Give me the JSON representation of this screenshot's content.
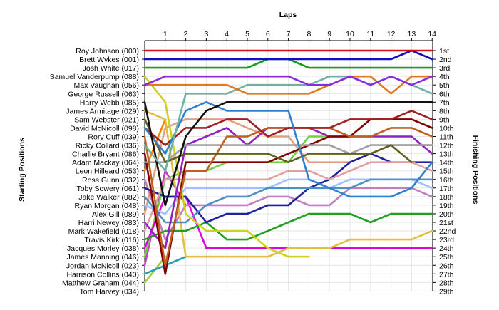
{
  "chart_data": {
    "type": "line",
    "title": "Laps",
    "ylabel_left": "Starting Positions",
    "ylabel_right": "Finishing Positions",
    "x_ticks": [
      "1",
      "2",
      "3",
      "4",
      "5",
      "6",
      "7",
      "8",
      "9",
      "10",
      "11",
      "12",
      "13",
      "14"
    ],
    "start_labels": [
      "Roy Johnson (000)",
      "Brett Wykes (001)",
      "Josh White (017)",
      "Samuel Vanderpump (088)",
      "Max Vaughan (056)",
      "George Russell (063)",
      "Harry Webb (085)",
      "James Armitage (029)",
      "Sam Webster (021)",
      "David McNicoll (098)",
      "Rory Cuff (039)",
      "Ricky Collard (036)",
      "Charlie Bryant (086)",
      "Adam Mackay (064)",
      "Leon Hilleard (053)",
      "Ross Gunn (032)",
      "Toby Sowery (061)",
      "Jake Walker (082)",
      "Ryan Morgan (048)",
      "Alex Gill (089)",
      "Harri Newey (083)",
      "Mark Wakefield (018)",
      "Travis Kirk (016)",
      "Jacques Morley (038)",
      "James Manning (046)",
      "Jordan McNicoll (023)",
      "Harrison Collins (040)",
      "Matthew Graham (044)",
      "Tom Harvey (034)"
    ],
    "finish_labels": [
      "1st",
      "2nd",
      "3rd",
      "4th",
      "5th",
      "6th",
      "7th",
      "8th",
      "9th",
      "10th",
      "11th",
      "12th",
      "13th",
      "14th",
      "15th",
      "16th",
      "17th",
      "18th",
      "19th",
      "20th",
      "21st",
      "22nd",
      "23rd",
      "24th",
      "25th",
      "26th",
      "27th",
      "28th",
      "29th"
    ],
    "x_range": [
      0,
      14
    ],
    "y_range": [
      1,
      29
    ],
    "grid": true,
    "series": [
      {
        "color": "#d01010",
        "values": [
          1,
          1,
          1,
          1,
          1,
          1,
          1,
          1,
          1,
          1,
          1,
          1,
          1,
          1,
          1
        ]
      },
      {
        "color": "#1010c0",
        "values": [
          2,
          2,
          2,
          2,
          2,
          2,
          2,
          2,
          2,
          2,
          2,
          2,
          2,
          1,
          2
        ]
      },
      {
        "color": "#10a010",
        "values": [
          3,
          3,
          3,
          3,
          3,
          3,
          2,
          2,
          3,
          3,
          3,
          3,
          3,
          3,
          3
        ]
      },
      {
        "color": "#8a2be2",
        "values": [
          5,
          4,
          4,
          4,
          4,
          4,
          4,
          4,
          5,
          5,
          4,
          5,
          4,
          5,
          4
        ]
      },
      {
        "color": "#e07a20",
        "values": [
          5,
          5,
          5,
          5,
          5,
          6,
          6,
          6,
          6,
          5,
          4,
          4,
          6,
          4,
          4
        ]
      },
      {
        "color": "#70b0a0",
        "values": [
          12,
          15,
          6,
          6,
          6,
          5,
          5,
          5,
          5,
          4,
          4,
          5,
          4,
          5,
          6
        ]
      },
      {
        "color": "#101010",
        "values": [
          7,
          19,
          11,
          8,
          7,
          7,
          7,
          7,
          7,
          7,
          7,
          7,
          7,
          7,
          7
        ]
      },
      {
        "color": "#3080d0",
        "values": [
          10,
          13,
          8,
          7,
          8,
          8,
          8,
          8,
          16,
          17,
          18,
          18,
          18,
          17,
          14
        ]
      },
      {
        "color": "#a02020",
        "values": [
          10,
          12,
          10,
          10,
          9,
          9,
          11,
          10,
          10,
          10,
          9,
          9,
          9,
          8,
          9
        ]
      },
      {
        "color": "#606020",
        "values": [
          9,
          14,
          13,
          13,
          13,
          13,
          13,
          14,
          13,
          13,
          13,
          13,
          12,
          14,
          null
        ]
      },
      {
        "color": "#c06020",
        "values": [
          11,
          26,
          15,
          15,
          11,
          11,
          10,
          10,
          10,
          10,
          11,
          11,
          10,
          10,
          11
        ]
      },
      {
        "color": "#a0a0a0",
        "values": [
          14,
          14,
          12,
          12,
          12,
          12,
          12,
          12,
          12,
          12,
          13,
          12,
          12,
          12,
          12
        ]
      },
      {
        "color": "#800000",
        "values": [
          13,
          27,
          14,
          14,
          14,
          14,
          14,
          13,
          12,
          11,
          11,
          9,
          9,
          9,
          10
        ]
      },
      {
        "color": "#9020c0",
        "values": [
          21,
          24,
          12,
          11,
          10,
          12,
          10,
          10,
          10,
          11,
          11,
          11,
          11,
          11,
          13
        ]
      },
      {
        "color": "#d0d020",
        "values": [
          4,
          7,
          20,
          22,
          22,
          22,
          24,
          25,
          25,
          null,
          null,
          null,
          null,
          null,
          null
        ]
      },
      {
        "color": "#e0a0a0",
        "values": [
          22,
          16,
          16,
          16,
          16,
          16,
          16,
          15,
          15,
          16,
          15,
          14,
          14,
          14,
          15
        ]
      },
      {
        "color": "#5090c0",
        "values": [
          18,
          21,
          21,
          19,
          18,
          18,
          17,
          17,
          17,
          17,
          17,
          16,
          16,
          16,
          16
        ]
      },
      {
        "color": "#2020a0",
        "values": [
          17,
          18,
          18,
          21,
          20,
          20,
          19,
          19,
          17,
          16,
          14,
          13,
          14,
          14,
          14
        ]
      },
      {
        "color": "#a0c0ff",
        "values": [
          19,
          20,
          17,
          17,
          17,
          17,
          17,
          16,
          16,
          17,
          16,
          16,
          16,
          16,
          17
        ]
      },
      {
        "color": "#20a020",
        "values": [
          23,
          22,
          22,
          21,
          23,
          23,
          22,
          21,
          20,
          20,
          20,
          21,
          20,
          20,
          20
        ]
      },
      {
        "color": "#e0c040",
        "values": [
          8,
          9,
          25,
          25,
          25,
          25,
          25,
          24,
          24,
          24,
          23,
          23,
          23,
          23,
          22
        ]
      },
      {
        "color": "#c080c0",
        "values": [
          16,
          23,
          19,
          19,
          19,
          19,
          18,
          18,
          19,
          19,
          17,
          17,
          17,
          17,
          18
        ]
      },
      {
        "color": "#e000e0",
        "values": [
          24,
          18,
          18,
          24,
          24,
          24,
          24,
          24,
          24,
          24,
          24,
          24,
          24,
          24,
          24
        ]
      },
      {
        "color": "#70d040",
        "values": [
          25,
          16,
          15,
          15,
          14,
          14,
          14,
          14,
          11,
          11,
          null,
          null,
          null,
          null,
          null
        ]
      },
      {
        "color": "#e0a080",
        "values": [
          20,
          10,
          9,
          9,
          9,
          10,
          11,
          11,
          14,
          14,
          14,
          13,
          12,
          12,
          12
        ]
      },
      {
        "color": "#c040c0",
        "values": [
          26,
          15,
          19,
          null,
          null,
          null,
          null,
          null,
          null,
          null,
          null,
          null,
          null,
          null,
          null
        ]
      },
      {
        "color": "#20a0c0",
        "values": [
          27,
          26,
          25,
          null,
          null,
          null,
          null,
          null,
          null,
          null,
          null,
          null,
          null,
          null,
          null
        ]
      },
      {
        "color": "#a0d040",
        "values": [
          28,
          25,
          null,
          null,
          null,
          null,
          null,
          null,
          null,
          null,
          null,
          null,
          null,
          null,
          null
        ]
      },
      {
        "color": "#ff8000",
        "values": [
          15,
          9,
          null,
          null,
          null,
          null,
          null,
          null,
          null,
          null,
          null,
          null,
          null,
          null,
          null
        ]
      }
    ]
  }
}
